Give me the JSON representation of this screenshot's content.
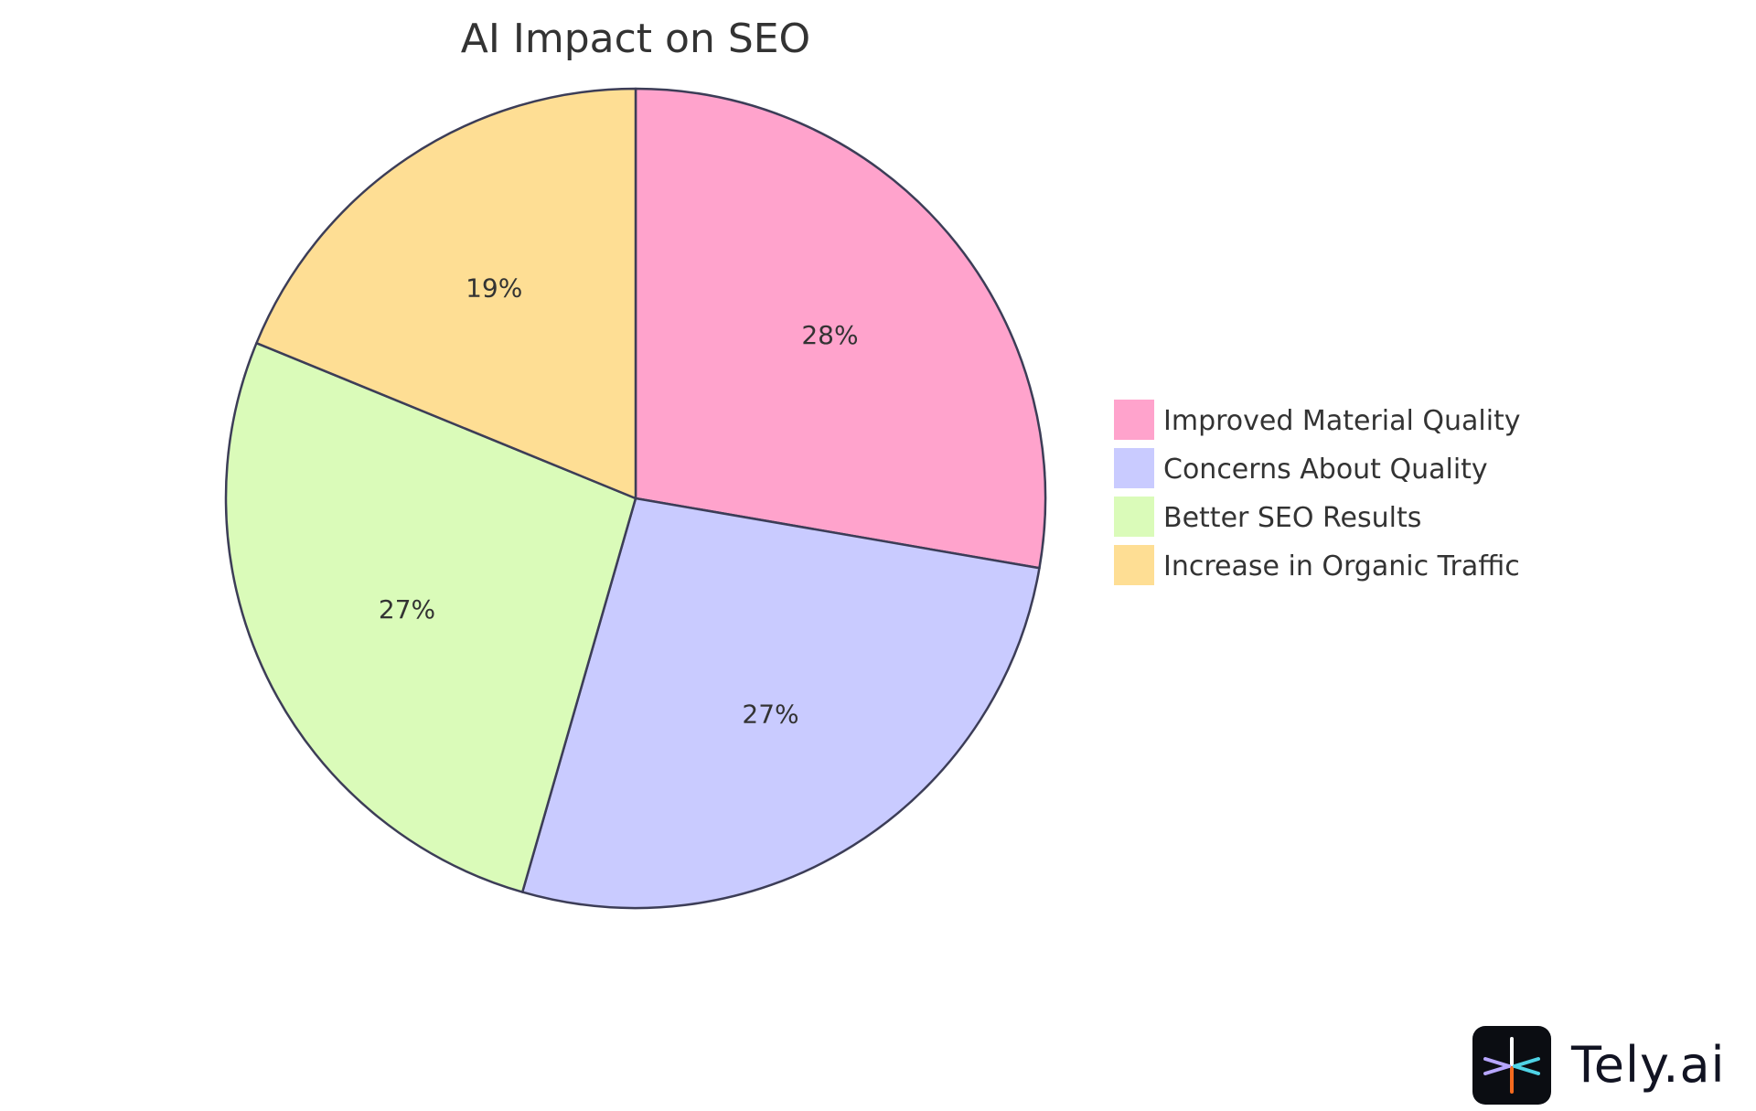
{
  "chart_data": {
    "type": "pie",
    "title": "AI Impact on SEO",
    "categories": [
      "Improved Material Quality",
      "Concerns About Quality",
      "Better SEO Results",
      "Increase in Organic Traffic"
    ],
    "values": [
      28,
      27,
      27,
      19
    ],
    "value_labels": [
      "28%",
      "27%",
      "27%",
      "19%"
    ],
    "colors": [
      "#ffa3cc",
      "#c9cbff",
      "#dafbb9",
      "#fede94"
    ],
    "stroke_color": "#3c3d57",
    "legend_position": "right",
    "start_angle": "12 o'clock",
    "direction": "clockwise"
  },
  "brand": {
    "name": "Tely.ai",
    "icon": "tely-logo-icon",
    "colors": {
      "tile": "#0b0d12",
      "spoke_left": "#b7a6ff",
      "spoke_right": "#4fd3e6",
      "spoke_bottom": "#f56a1e",
      "spoke_top": "#ffffff"
    }
  }
}
